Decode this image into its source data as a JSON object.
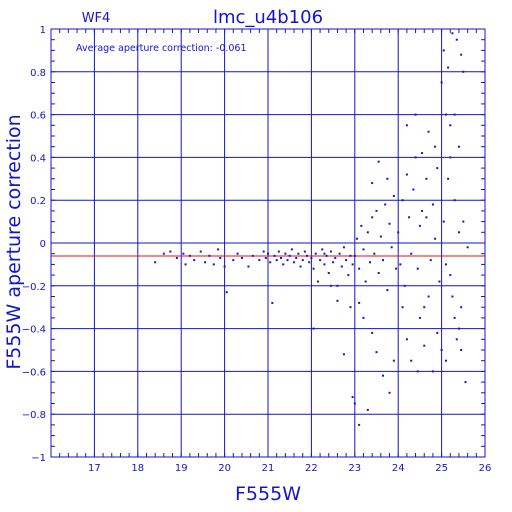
{
  "chart_data": {
    "type": "scatter",
    "title": "lmc_u4b106",
    "panel_label": "WF4",
    "annotation": "Average aperture correction: -0.061",
    "xlabel": "F555W",
    "ylabel": "F555W aperture correction",
    "xlim": [
      16,
      26
    ],
    "ylim": [
      -1,
      1
    ],
    "xticks": [
      17,
      18,
      19,
      20,
      21,
      22,
      23,
      24,
      25,
      26
    ],
    "yticks": [
      -1,
      -0.8,
      -0.6,
      -0.4,
      -0.2,
      0,
      0.2,
      0.4,
      0.6,
      0.8,
      1
    ],
    "ytick_labels": [
      "−1",
      "−0.8",
      "−0.6",
      "−0.4",
      "−0.2",
      "0",
      "0.2",
      "0.4",
      "0.6",
      "0.8",
      "1"
    ],
    "grid": true,
    "reference_line": {
      "y": -0.061,
      "color": "#e01010"
    },
    "series": [
      {
        "color": "#1515c8",
        "points": [
          [
            18.4,
            -0.09
          ],
          [
            18.6,
            -0.05
          ],
          [
            18.75,
            -0.04
          ],
          [
            18.9,
            -0.07
          ],
          [
            19.05,
            -0.05
          ],
          [
            19.1,
            -0.1
          ],
          [
            19.2,
            -0.06
          ],
          [
            19.3,
            -0.08
          ],
          [
            19.45,
            -0.04
          ],
          [
            19.55,
            -0.09
          ],
          [
            19.65,
            -0.06
          ],
          [
            19.75,
            -0.1
          ],
          [
            19.85,
            -0.03
          ],
          [
            19.9,
            -0.07
          ],
          [
            20.0,
            -0.11
          ],
          [
            20.05,
            -0.23
          ],
          [
            20.2,
            -0.08
          ],
          [
            20.3,
            -0.05
          ],
          [
            20.4,
            -0.07
          ],
          [
            20.55,
            -0.11
          ],
          [
            20.65,
            -0.06
          ],
          [
            20.8,
            -0.08
          ],
          [
            20.9,
            -0.04
          ],
          [
            20.95,
            -0.07
          ],
          [
            21.0,
            -0.05
          ],
          [
            21.05,
            -0.09
          ],
          [
            21.1,
            -0.28
          ],
          [
            21.15,
            -0.06
          ],
          [
            21.2,
            -0.08
          ],
          [
            21.25,
            -0.04
          ],
          [
            21.3,
            -0.07
          ],
          [
            21.35,
            -0.1
          ],
          [
            21.4,
            -0.05
          ],
          [
            21.45,
            -0.08
          ],
          [
            21.5,
            -0.06
          ],
          [
            21.55,
            -0.03
          ],
          [
            21.6,
            -0.09
          ],
          [
            21.65,
            -0.07
          ],
          [
            21.7,
            -0.05
          ],
          [
            21.75,
            -0.11
          ],
          [
            21.8,
            -0.08
          ],
          [
            21.85,
            -0.04
          ],
          [
            21.9,
            -0.06
          ],
          [
            21.95,
            -0.09
          ],
          [
            22.0,
            -0.07
          ],
          [
            22.05,
            -0.12
          ],
          [
            22.1,
            -0.05
          ],
          [
            22.15,
            -0.18
          ],
          [
            22.2,
            -0.08
          ],
          [
            22.25,
            -0.03
          ],
          [
            22.3,
            -0.1
          ],
          [
            22.35,
            -0.06
          ],
          [
            22.4,
            -0.14
          ],
          [
            22.45,
            -0.04
          ],
          [
            22.5,
            -0.09
          ],
          [
            22.55,
            -0.07
          ],
          [
            22.6,
            -0.2
          ],
          [
            22.65,
            -0.05
          ],
          [
            22.7,
            -0.11
          ],
          [
            22.75,
            -0.02
          ],
          [
            22.8,
            -0.08
          ],
          [
            22.85,
            -0.15
          ],
          [
            22.9,
            -0.06
          ],
          [
            22.95,
            -0.1
          ],
          [
            22.05,
            -0.4
          ],
          [
            22.3,
            -0.05
          ],
          [
            22.45,
            -0.2
          ],
          [
            22.6,
            -0.27
          ],
          [
            22.75,
            -0.52
          ],
          [
            22.9,
            -0.3
          ],
          [
            22.95,
            -0.72
          ],
          [
            23.0,
            -0.06
          ],
          [
            23.05,
            0.02
          ],
          [
            23.1,
            -0.12
          ],
          [
            23.15,
            0.08
          ],
          [
            23.2,
            -0.03
          ],
          [
            23.25,
            -0.18
          ],
          [
            23.3,
            0.05
          ],
          [
            23.35,
            -0.09
          ],
          [
            23.4,
            0.12
          ],
          [
            23.45,
            -0.05
          ],
          [
            23.5,
            0.15
          ],
          [
            23.55,
            -0.14
          ],
          [
            23.6,
            0.03
          ],
          [
            23.65,
            -0.08
          ],
          [
            23.7,
            0.18
          ],
          [
            23.75,
            -0.22
          ],
          [
            23.8,
            0.09
          ],
          [
            23.85,
            -0.02
          ],
          [
            23.9,
            0.22
          ],
          [
            23.95,
            -0.12
          ],
          [
            23.1,
            -0.28
          ],
          [
            23.2,
            -0.35
          ],
          [
            23.4,
            -0.42
          ],
          [
            23.5,
            -0.51
          ],
          [
            23.65,
            -0.62
          ],
          [
            23.8,
            -0.7
          ],
          [
            23.9,
            -0.55
          ],
          [
            23.0,
            -0.75
          ],
          [
            23.1,
            -0.85
          ],
          [
            23.3,
            -0.78
          ],
          [
            23.55,
            0.38
          ],
          [
            23.4,
            0.28
          ],
          [
            23.75,
            0.3
          ],
          [
            24.0,
            0.05
          ],
          [
            24.05,
            -0.1
          ],
          [
            24.1,
            0.2
          ],
          [
            24.15,
            -0.2
          ],
          [
            24.2,
            0.32
          ],
          [
            24.25,
            0.12
          ],
          [
            24.3,
            -0.05
          ],
          [
            24.35,
            0.25
          ],
          [
            24.4,
            0.4
          ],
          [
            24.45,
            -0.12
          ],
          [
            24.5,
            0.08
          ],
          [
            24.55,
            0.15
          ],
          [
            24.6,
            -0.3
          ],
          [
            24.65,
            0.3
          ],
          [
            24.7,
            0.52
          ],
          [
            24.75,
            -0.08
          ],
          [
            24.8,
            0.18
          ],
          [
            24.85,
            0.02
          ],
          [
            24.9,
            0.35
          ],
          [
            24.95,
            -0.18
          ],
          [
            24.1,
            -0.3
          ],
          [
            24.2,
            -0.45
          ],
          [
            24.3,
            -0.55
          ],
          [
            24.45,
            -0.6
          ],
          [
            24.5,
            -0.35
          ],
          [
            24.6,
            -0.48
          ],
          [
            24.7,
            -0.25
          ],
          [
            24.8,
            -0.6
          ],
          [
            24.9,
            -0.42
          ],
          [
            24.2,
            0.55
          ],
          [
            24.4,
            0.6
          ],
          [
            24.55,
            0.42
          ],
          [
            24.65,
            0.12
          ],
          [
            24.85,
            0.45
          ],
          [
            25.0,
            0.75
          ],
          [
            25.05,
            0.1
          ],
          [
            25.1,
            -0.1
          ],
          [
            25.15,
            0.3
          ],
          [
            25.2,
            0.55
          ],
          [
            25.25,
            -0.25
          ],
          [
            25.3,
            0.2
          ],
          [
            25.35,
            -0.45
          ],
          [
            25.4,
            0.05
          ],
          [
            25.45,
            -0.3
          ],
          [
            25.5,
            0.1
          ],
          [
            25.55,
            -0.65
          ],
          [
            25.6,
            -0.02
          ],
          [
            25.0,
            -0.5
          ],
          [
            25.1,
            -0.55
          ],
          [
            25.2,
            -0.15
          ],
          [
            25.3,
            -0.35
          ],
          [
            25.4,
            -0.4
          ],
          [
            25.45,
            -0.5
          ],
          [
            25.05,
            0.9
          ],
          [
            25.15,
            0.82
          ],
          [
            25.25,
            0.98
          ],
          [
            25.35,
            0.95
          ],
          [
            25.45,
            0.88
          ],
          [
            25.5,
            0.8
          ],
          [
            25.3,
            0.6
          ],
          [
            25.4,
            0.45
          ],
          [
            25.2,
            0.4
          ],
          [
            25.1,
            0.6
          ]
        ]
      }
    ]
  }
}
